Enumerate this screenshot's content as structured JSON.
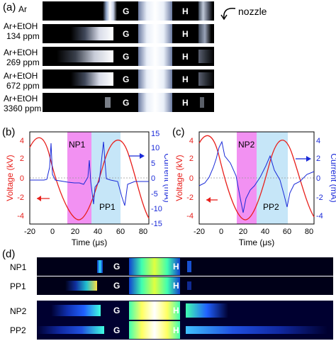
{
  "panel_a": {
    "letter": "(a)",
    "rows": [
      {
        "line1": "Ar",
        "line2": ""
      },
      {
        "line1": "Ar+EtOH",
        "line2": "134 ppm"
      },
      {
        "line1": "Ar+EtOH",
        "line2": "269 ppm"
      },
      {
        "line1": "Ar+EtOH",
        "line2": "672 ppm"
      },
      {
        "line1": "Ar+EtOH",
        "line2": "3360 ppm"
      }
    ],
    "g_label": "G",
    "h_label": "H",
    "nozzle_label": "nozzle"
  },
  "panel_b": {
    "letter": "(b)",
    "xlabel": "Time (μs)",
    "ylabel_left": "Voltage (kV)",
    "ylabel_right": "Current (mA)",
    "x_ticks": [
      "-20",
      "0",
      "20",
      "40",
      "60",
      "80"
    ],
    "y_left_ticks": [
      "4",
      "2",
      "0",
      "-2",
      "-4"
    ],
    "y_right_ticks": [
      "15",
      "10",
      "5",
      "0",
      "-5",
      "-10",
      "-15"
    ],
    "region1": "NP1",
    "region2": "PP1"
  },
  "panel_c": {
    "letter": "(c)",
    "xlabel": "Time (μs)",
    "ylabel_left": "Voltage (kV)",
    "ylabel_right": "Current (mA)",
    "x_ticks": [
      "-20",
      "0",
      "20",
      "40",
      "60",
      "80"
    ],
    "y_left_ticks": [
      "4",
      "2",
      "0",
      "-2",
      "-4"
    ],
    "y_right_ticks": [
      "4",
      "2",
      "0",
      "-2",
      "-4"
    ],
    "region1": "NP2",
    "region2": "PP2"
  },
  "panel_d": {
    "letter": "(d)",
    "rows": [
      "NP1",
      "PP1",
      "NP2",
      "PP2"
    ],
    "g_label": "G",
    "h_label": "H"
  },
  "chart_data": [
    {
      "type": "line",
      "x_range": [
        -20,
        85
      ],
      "ylim_left": [
        -5,
        5
      ],
      "ylim_right": [
        -15,
        15
      ],
      "voltage": {
        "amplitude_kV": 3.7,
        "period_us": 70,
        "peaks_us": [
          -10,
          60
        ],
        "troughs_us": [
          25
        ]
      },
      "current_spikes_mA": [
        {
          "t": 0,
          "value": 12
        },
        {
          "t": 27,
          "value": 10
        },
        {
          "t": 33,
          "value": -8
        },
        {
          "t": 57,
          "value": -10
        }
      ],
      "regions_us": [
        {
          "name": "NP1",
          "from": 13,
          "to": 34
        },
        {
          "name": "PP1",
          "from": 34,
          "to": 60
        }
      ]
    },
    {
      "type": "line",
      "x_range": [
        -20,
        85
      ],
      "ylim_left": [
        -5,
        5
      ],
      "ylim_right": [
        -5,
        5
      ],
      "voltage": {
        "amplitude_kV": 3.7,
        "period_us": 70,
        "peaks_us": [
          -13,
          57
        ],
        "troughs_us": [
          22
        ]
      },
      "current_spikes_mA": [
        {
          "t": 12,
          "value": 3.6
        },
        {
          "t": 25,
          "value": -3.4
        },
        {
          "t": 42,
          "value": 1.8
        },
        {
          "t": 58,
          "value": -3.0
        }
      ],
      "regions_us": [
        {
          "name": "NP2",
          "from": 14,
          "to": 29
        },
        {
          "name": "PP2",
          "from": 29,
          "to": 57
        }
      ]
    }
  ]
}
